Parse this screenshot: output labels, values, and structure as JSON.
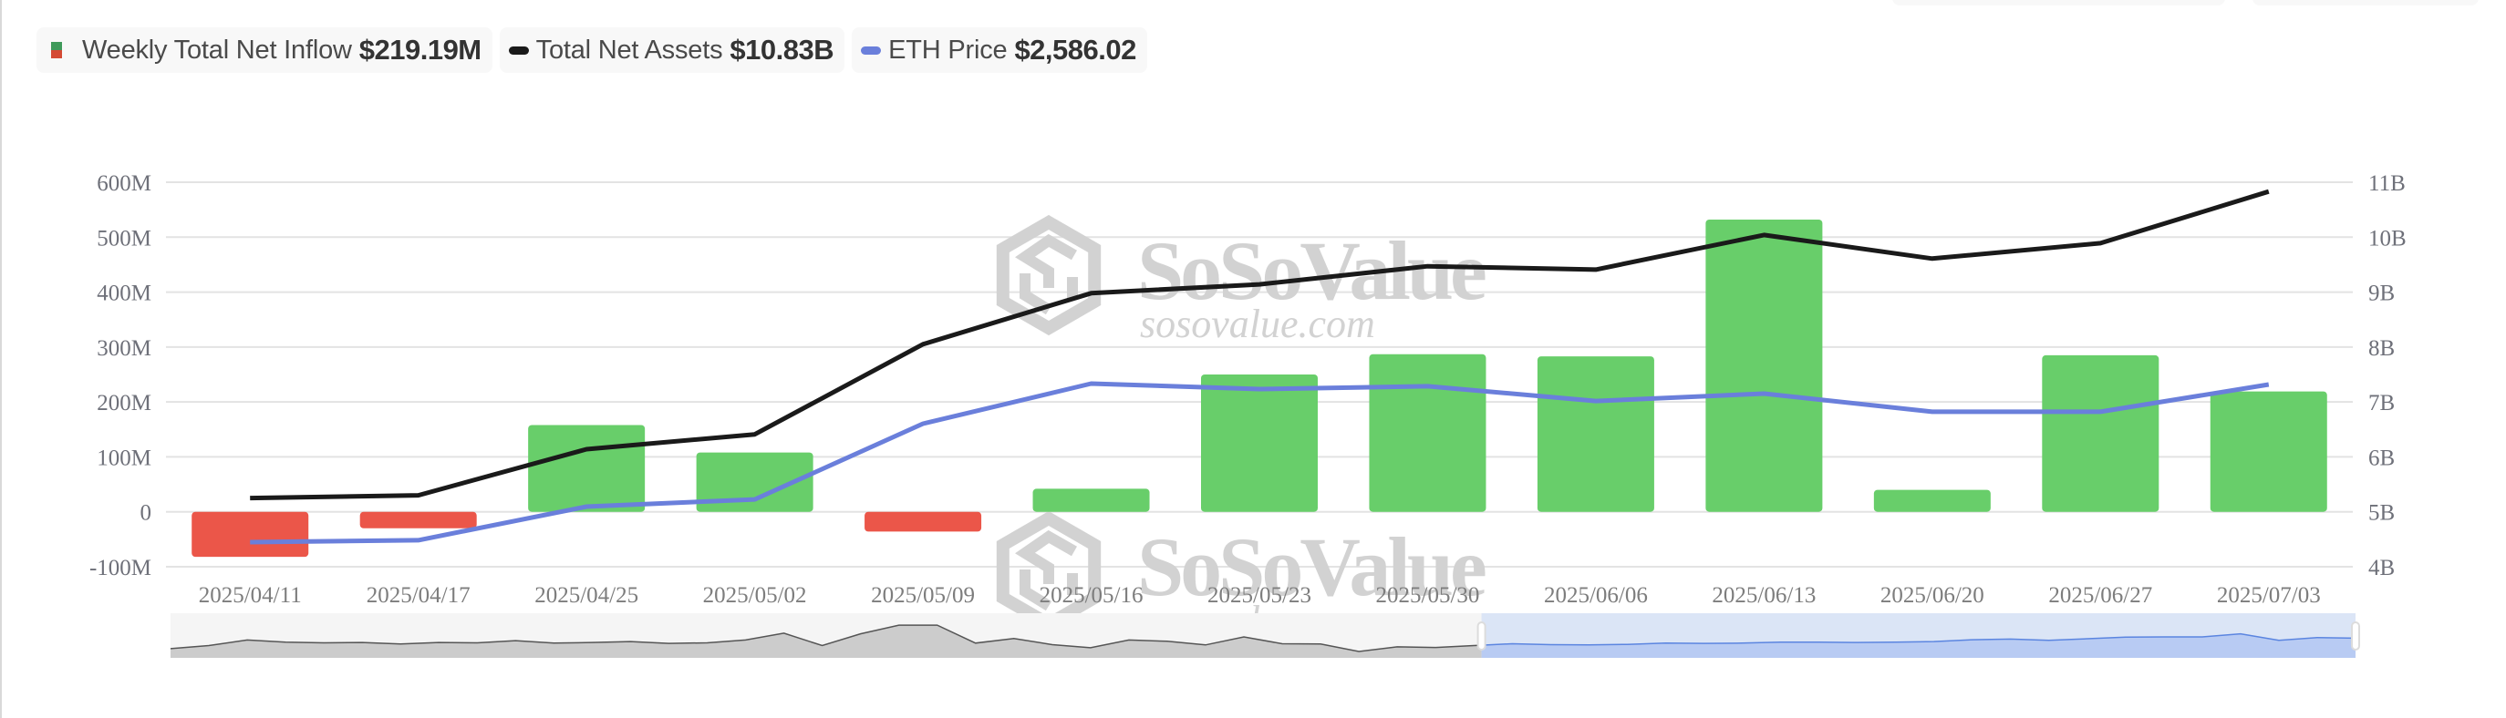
{
  "legend": {
    "inflow": {
      "label": "Weekly Total Net Inflow",
      "value": "$219.19M",
      "colors": {
        "positive": "#3f9a5a",
        "negative": "#d44a34"
      }
    },
    "assets": {
      "label": "Total Net Assets",
      "value": "$10.83B",
      "color": "#1a1a1a"
    },
    "eth": {
      "label": "ETH Price",
      "value": "$2,586.02",
      "color": "#6a7fdb"
    }
  },
  "colors": {
    "bar_positive": "#68ce6a",
    "bar_negative": "#eb5649",
    "assets_line": "#1a1a1a",
    "eth_line": "#6a7fdb",
    "grid": "#e3e3e3",
    "axis_text": "#6e7079",
    "slider_bg": "#f5f5f5",
    "slider_fill": "#cccccc",
    "slider_selected_bg": "#dbe5f6",
    "slider_selected_fill": "#b8cbf3",
    "slider_selected_line": "#5b85e0",
    "watermark": "#d2d2d2"
  },
  "watermark": {
    "brand": "SoSoValue",
    "domain": "sosovalue.com"
  },
  "chart_data": {
    "type": "bar+line",
    "title": "",
    "categories": [
      "2025/04/11",
      "2025/04/17",
      "2025/04/25",
      "2025/05/02",
      "2025/05/09",
      "2025/05/16",
      "2025/05/23",
      "2025/05/30",
      "2025/06/06",
      "2025/06/13",
      "2025/06/20",
      "2025/06/27",
      "2025/07/03"
    ],
    "series": [
      {
        "name": "Weekly Total Net Inflow",
        "type": "bar",
        "axis": "left",
        "unit": "USD M",
        "values": [
          -82,
          -30,
          158,
          108,
          -36,
          42,
          250,
          287,
          283,
          532,
          40,
          285,
          219.19
        ]
      },
      {
        "name": "Total Net Assets",
        "type": "line",
        "axis": "right",
        "unit": "USD B",
        "values": [
          5.25,
          5.3,
          6.14,
          6.41,
          8.05,
          8.98,
          9.14,
          9.47,
          9.41,
          10.04,
          9.61,
          9.89,
          10.83
        ]
      },
      {
        "name": "ETH Price",
        "type": "line",
        "axis": "hidden",
        "unit": "USD",
        "values": [
          1580,
          1592,
          1807,
          1853,
          2336,
          2592,
          2557,
          2575,
          2481,
          2528,
          2412,
          2412,
          2586.02
        ]
      }
    ],
    "left_axis": {
      "ticks": [
        "600M",
        "500M",
        "400M",
        "300M",
        "200M",
        "100M",
        "0",
        "-100M"
      ],
      "ylim": [
        -100,
        600
      ]
    },
    "right_axis": {
      "ticks": [
        "11B",
        "10B",
        "9B",
        "8B",
        "7B",
        "6B",
        "5B",
        "4B"
      ],
      "ylim": [
        4,
        11
      ]
    },
    "grid": true,
    "legend_position": "top-left",
    "data_zoom": {
      "start_percent": 60,
      "end_percent": 100
    }
  }
}
